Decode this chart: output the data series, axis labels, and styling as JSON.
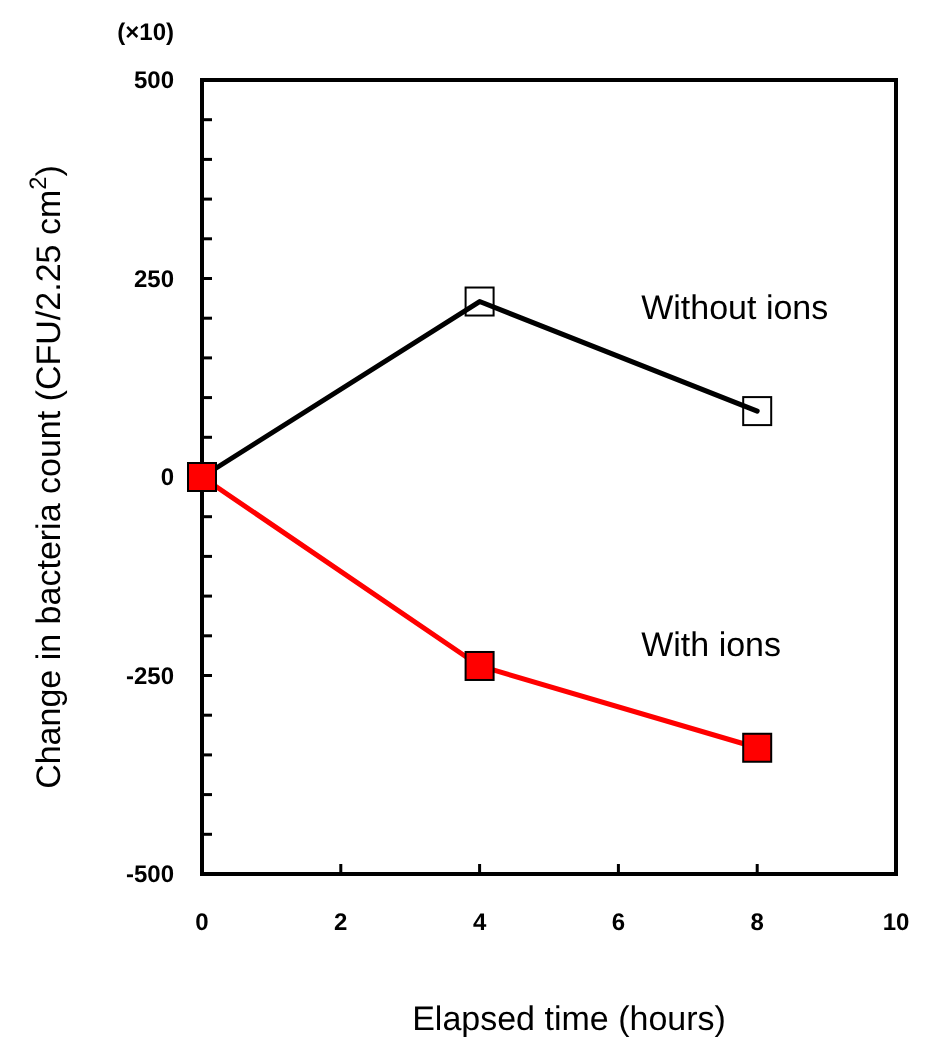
{
  "chart_data": {
    "type": "line",
    "xlabel": "Elapsed time (hours)",
    "ylabel": "Change in bacteria count (CFU/2.25 cm$^{2}$)",
    "annotations": [
      "(×10)"
    ],
    "x": [
      0,
      4,
      8
    ],
    "series": [
      {
        "name": "Without ions",
        "color": "#000000",
        "values": [
          0,
          221,
          83
        ]
      },
      {
        "name": "With ions",
        "color": "#ff0000",
        "values": [
          0,
          -238,
          -341
        ]
      }
    ],
    "xlim": [
      0,
      10
    ],
    "xticks": [
      0,
      2,
      4,
      6,
      8,
      10
    ],
    "ylim": [
      -500,
      500
    ],
    "yticks": [
      -500,
      {
        "value": -450,
        "label": null
      },
      {
        "value": -400,
        "label": null
      },
      {
        "value": -350,
        "label": null
      },
      {
        "value": -300,
        "label": null
      },
      -250,
      {
        "value": -200,
        "label": null
      },
      {
        "value": -150,
        "label": null
      },
      {
        "value": -100,
        "label": null
      },
      {
        "value": -50,
        "label": null
      },
      0,
      {
        "value": 50,
        "label": null
      },
      {
        "value": 100,
        "label": null
      },
      {
        "value": 150,
        "label": null
      },
      {
        "value": 200,
        "label": null
      },
      250,
      {
        "value": 300,
        "label": null
      },
      {
        "value": 350,
        "label": null
      },
      {
        "value": 400,
        "label": null
      },
      {
        "value": 450,
        "label": null
      },
      500
    ],
    "marker": "square",
    "line_style": "solid",
    "grid": false
  }
}
